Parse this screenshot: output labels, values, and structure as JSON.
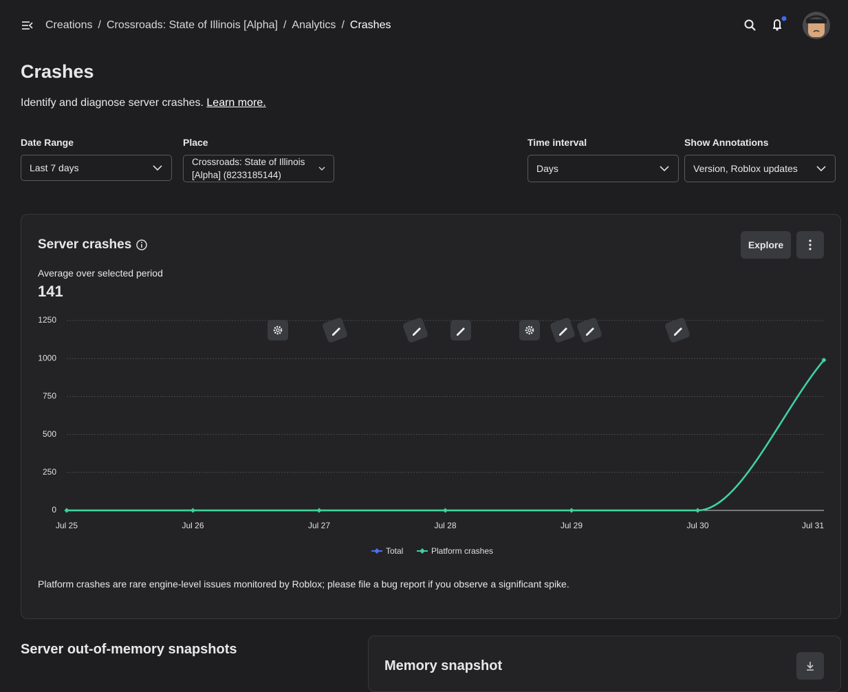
{
  "header": {
    "breadcrumbs": [
      "Creations",
      "Crossroads: State of Illinois [Alpha]",
      "Analytics",
      "Crashes"
    ],
    "separator": "/"
  },
  "page": {
    "title": "Crashes",
    "description": "Identify and diagnose server crashes.",
    "link": "Learn more."
  },
  "filters": [
    {
      "label": "Date Range",
      "value": "Last 7 days"
    },
    {
      "label": "Place",
      "value": "Crossroads: State of Illinois [Alpha] (8233185144)"
    },
    {
      "label": "Time interval",
      "value": "Days"
    },
    {
      "label": "Show Annotations",
      "value": "Version, Roblox updates"
    }
  ],
  "card": {
    "title": "Server crashes",
    "button": "Explore",
    "average_label": "Average over selected period",
    "average_value": 141,
    "note": "Platform crashes are rare engine-level issues monitored by Roblox; please file a bug report if you observe a significant spike."
  },
  "chart_data": {
    "type": "line",
    "categories": [
      "Jul 25",
      "Jul 26",
      "Jul 27",
      "Jul 28",
      "Jul 29",
      "Jul 30",
      "Jul 31"
    ],
    "series": [
      {
        "name": "Total",
        "color": "#4f6ef7",
        "values": [
          0,
          0,
          0,
          0,
          0,
          0,
          990
        ]
      },
      {
        "name": "Platform crashes",
        "color": "#3ed39b",
        "values": [
          0,
          0,
          0,
          0,
          0,
          0,
          990
        ]
      }
    ],
    "ylim": [
      0,
      1250
    ],
    "yticks": [
      0,
      250,
      500,
      750,
      1000,
      1250
    ],
    "grid": true
  },
  "sections": {
    "oom_title": "Server out-of-memory snapshots",
    "snapshot_title": "Memory snapshot"
  }
}
